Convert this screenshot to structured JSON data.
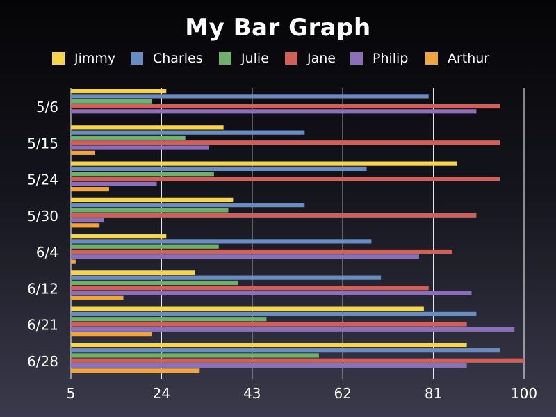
{
  "chart_data": {
    "type": "bar",
    "orientation": "horizontal",
    "title": "My Bar Graph",
    "xlabel": "",
    "ylabel": "",
    "categories": [
      "5/6",
      "5/15",
      "5/24",
      "5/30",
      "6/4",
      "6/12",
      "6/21",
      "6/28"
    ],
    "xlim": [
      5,
      100
    ],
    "xticks": [
      "5",
      "24",
      "43",
      "62",
      "81",
      "100"
    ],
    "grid": "vertical",
    "legend_position": "top",
    "series": [
      {
        "name": "Jimmy",
        "color": "#f7d54a",
        "values": [
          25,
          37,
          86,
          39,
          25,
          31,
          79,
          88
        ]
      },
      {
        "name": "Charles",
        "color": "#6b8cc0",
        "values": [
          80,
          54,
          67,
          54,
          68,
          70,
          90,
          95
        ]
      },
      {
        "name": "Julie",
        "color": "#6fb06c",
        "values": [
          22,
          29,
          35,
          38,
          36,
          40,
          46,
          57
        ]
      },
      {
        "name": "Jane",
        "color": "#d0615a",
        "values": [
          95,
          95,
          95,
          90,
          85,
          80,
          88,
          100
        ]
      },
      {
        "name": "Philip",
        "color": "#8b6fb8",
        "values": [
          90,
          34,
          23,
          12,
          78,
          89,
          98,
          88
        ]
      },
      {
        "name": "Arthur",
        "color": "#f0a640",
        "values": [
          5,
          10,
          13,
          11,
          6,
          16,
          22,
          32
        ]
      }
    ]
  }
}
